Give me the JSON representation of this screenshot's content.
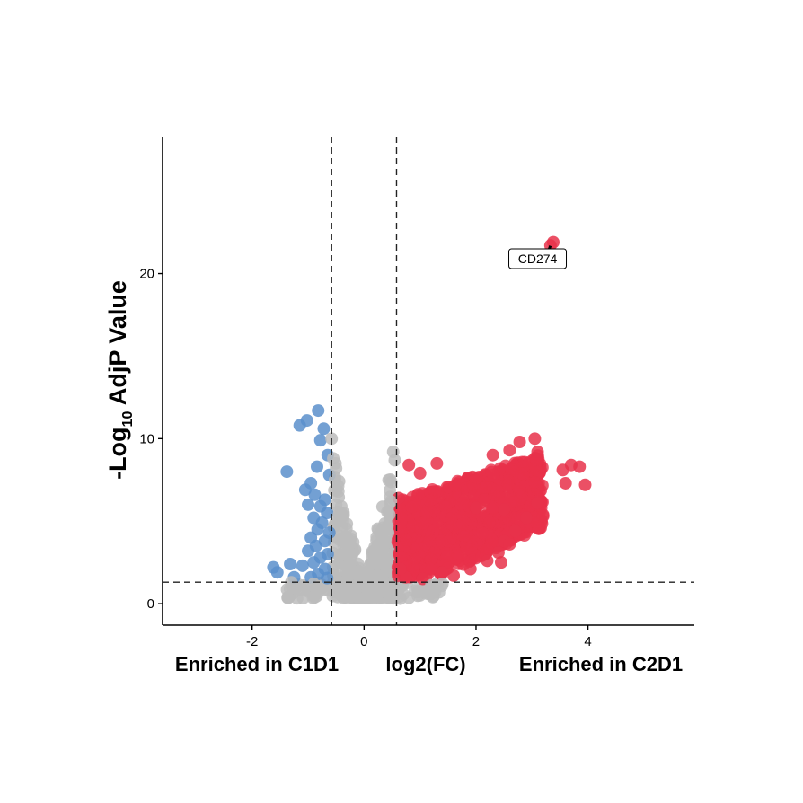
{
  "chart_data": {
    "type": "scatter",
    "title": "",
    "xlabel": "log2(FC)",
    "ylabel_main": "-Log",
    "ylabel_sub": "10",
    "ylabel_tail": " AdjP Value",
    "left_caption": "Enriched in C1D1",
    "right_caption": "Enriched in C2D1",
    "xlim": [
      -3.6,
      5.9
    ],
    "ylim": [
      -1.3,
      28.3
    ],
    "xticks": [
      -2,
      0,
      2,
      4
    ],
    "yticks": [
      0,
      10,
      20
    ],
    "xtick_labels": [
      "-2",
      "0",
      "2",
      "4"
    ],
    "ytick_labels": [
      "0",
      "10",
      "20"
    ],
    "thresholds": {
      "log2fc_low": -0.58,
      "log2fc_high": 0.58,
      "neg_log10_padj": 1.3
    },
    "grid": false,
    "colors": {
      "down": "#5b8fcb",
      "up": "#e8314a",
      "ns": "#bcbcbc"
    },
    "series": [
      {
        "group": "down",
        "points": [
          [
            -0.82,
            11.7
          ],
          [
            -1.02,
            11.1
          ],
          [
            -1.15,
            10.8
          ],
          [
            -0.72,
            10.6
          ],
          [
            -0.78,
            9.9
          ],
          [
            -0.65,
            9.0
          ],
          [
            -0.84,
            8.3
          ],
          [
            -1.38,
            8.0
          ],
          [
            -0.62,
            7.8
          ],
          [
            -0.95,
            7.3
          ],
          [
            -1.05,
            6.9
          ],
          [
            -0.88,
            6.6
          ],
          [
            -0.7,
            6.3
          ],
          [
            -1.0,
            6.0
          ],
          [
            -0.78,
            5.9
          ],
          [
            -0.66,
            5.5
          ],
          [
            -0.9,
            5.2
          ],
          [
            -0.75,
            4.9
          ],
          [
            -0.83,
            4.5
          ],
          [
            -0.62,
            4.3
          ],
          [
            -0.95,
            4.0
          ],
          [
            -0.7,
            3.8
          ],
          [
            -0.86,
            3.5
          ],
          [
            -1.0,
            3.2
          ],
          [
            -0.65,
            3.0
          ],
          [
            -0.78,
            2.8
          ],
          [
            -0.9,
            2.5
          ],
          [
            -1.1,
            2.3
          ],
          [
            -1.32,
            2.4
          ],
          [
            -1.62,
            2.2
          ],
          [
            -1.55,
            1.9
          ],
          [
            -0.7,
            2.1
          ],
          [
            -0.82,
            1.8
          ],
          [
            -1.25,
            1.6
          ],
          [
            -0.95,
            1.6
          ],
          [
            -0.66,
            1.55
          ]
        ]
      },
      {
        "group": "up",
        "points": [
          [
            3.38,
            21.9
          ],
          [
            3.33,
            21.7
          ],
          [
            2.78,
            9.8
          ],
          [
            3.05,
            10.0
          ],
          [
            2.6,
            9.3
          ],
          [
            3.1,
            9.2
          ],
          [
            2.3,
            9.0
          ],
          [
            0.8,
            8.4
          ],
          [
            1.3,
            8.5
          ],
          [
            3.7,
            8.4
          ],
          [
            3.85,
            8.3
          ],
          [
            3.55,
            8.1
          ],
          [
            1.0,
            7.9
          ],
          [
            3.6,
            7.3
          ],
          [
            3.95,
            7.2
          ],
          [
            0.62,
            6.4
          ],
          [
            3.1,
            6.1
          ],
          [
            2.0,
            5.8
          ],
          [
            2.5,
            5.7
          ],
          [
            2.9,
            5.2
          ],
          [
            2.7,
            4.4
          ],
          [
            2.5,
            3.8
          ],
          [
            2.6,
            3.6
          ],
          [
            2.4,
            3.1
          ],
          [
            2.2,
            2.6
          ],
          [
            2.45,
            2.5
          ],
          [
            1.9,
            2.1
          ],
          [
            1.6,
            1.7
          ],
          [
            1.4,
            1.9
          ],
          [
            0.75,
            1.6
          ],
          [
            1.05,
            1.5
          ],
          [
            0.65,
            2.1
          ]
        ]
      },
      {
        "group": "ns",
        "points": [
          [
            -0.58,
            10.0
          ],
          [
            0.52,
            9.2
          ],
          [
            -0.55,
            8.8
          ],
          [
            -0.5,
            8.2
          ],
          [
            -0.52,
            7.5
          ],
          [
            -0.46,
            6.8
          ],
          [
            -0.5,
            6.0
          ],
          [
            0.48,
            6.2
          ],
          [
            -0.45,
            5.4
          ],
          [
            0.45,
            5.4
          ],
          [
            -0.4,
            4.6
          ],
          [
            0.43,
            4.3
          ],
          [
            -0.35,
            3.8
          ],
          [
            0.36,
            3.6
          ],
          [
            -0.3,
            3.0
          ],
          [
            0.32,
            2.9
          ],
          [
            -0.26,
            2.4
          ],
          [
            0.28,
            2.2
          ],
          [
            -0.22,
            1.8
          ],
          [
            0.24,
            1.7
          ],
          [
            -0.1,
            1.2
          ],
          [
            0.05,
            0.5
          ],
          [
            -0.35,
            0.6
          ],
          [
            0.4,
            0.7
          ],
          [
            -0.9,
            1.2
          ],
          [
            1.2,
            1.1
          ],
          [
            -1.3,
            1.3
          ],
          [
            1.4,
            1.2
          ]
        ]
      }
    ],
    "annotation": {
      "label": "CD274",
      "x": 3.36,
      "y": 21.9,
      "label_x": 3.1,
      "label_y": 20.9
    }
  }
}
